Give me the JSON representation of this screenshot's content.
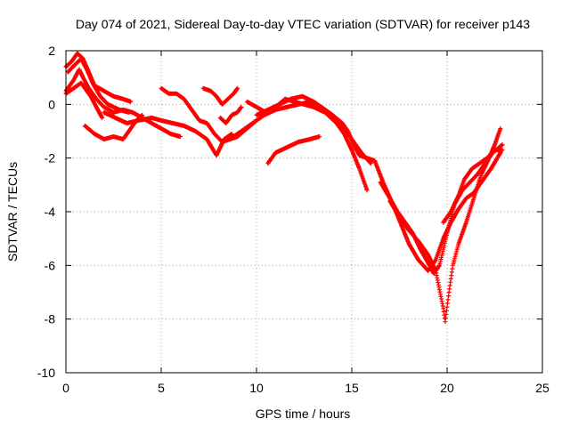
{
  "chart_data": {
    "type": "scatter",
    "title": "Day 074 of 2021, Sidereal Day-to-day VTEC variation (SDTVAR) for receiver p143",
    "xlabel": "GPS time / hours",
    "ylabel": "SDTVAR / TECUs",
    "xlim": [
      0,
      25
    ],
    "ylim": [
      -10,
      2
    ],
    "xticks": [
      0,
      5,
      10,
      15,
      20,
      25
    ],
    "yticks": [
      -10,
      -8,
      -6,
      -4,
      -2,
      0,
      2
    ],
    "grid": true,
    "marker": "+",
    "series_color": "#ff0000",
    "tracks": [
      [
        [
          0.0,
          0.5
        ],
        [
          0.4,
          0.9
        ],
        [
          0.7,
          1.3
        ],
        [
          0.9,
          1.0
        ],
        [
          1.2,
          0.6
        ],
        [
          1.6,
          0.2
        ],
        [
          2.0,
          -0.1
        ],
        [
          2.5,
          -0.3
        ],
        [
          3.0,
          -0.2
        ],
        [
          3.5,
          -0.3
        ],
        [
          4.0,
          -0.5
        ],
        [
          4.5,
          -0.7
        ],
        [
          5.0,
          -0.9
        ],
        [
          5.5,
          -1.1
        ],
        [
          6.0,
          -1.2
        ]
      ],
      [
        [
          0.0,
          1.4
        ],
        [
          0.3,
          1.6
        ],
        [
          0.6,
          1.9
        ],
        [
          0.9,
          1.7
        ],
        [
          1.2,
          1.2
        ],
        [
          1.5,
          0.7
        ],
        [
          2.0,
          0.5
        ],
        [
          2.5,
          0.3
        ],
        [
          3.0,
          0.2
        ],
        [
          3.4,
          0.1
        ]
      ],
      [
        [
          0.1,
          1.2
        ],
        [
          0.5,
          1.5
        ],
        [
          0.8,
          1.7
        ],
        [
          1.1,
          1.3
        ],
        [
          1.4,
          0.8
        ],
        [
          1.8,
          0.3
        ],
        [
          2.2,
          0.0
        ],
        [
          2.8,
          -0.2
        ],
        [
          3.3,
          -0.3
        ]
      ],
      [
        [
          0.0,
          0.4
        ],
        [
          0.4,
          0.6
        ],
        [
          0.8,
          0.8
        ],
        [
          1.0,
          0.6
        ],
        [
          1.3,
          0.3
        ],
        [
          1.6,
          -0.1
        ],
        [
          1.9,
          -0.5
        ]
      ],
      [
        [
          1.0,
          -0.8
        ],
        [
          1.5,
          -1.1
        ],
        [
          2.0,
          -1.3
        ],
        [
          2.5,
          -1.2
        ],
        [
          3.0,
          -1.3
        ],
        [
          3.4,
          -0.9
        ],
        [
          3.7,
          -0.6
        ],
        [
          4.0,
          -0.4
        ]
      ],
      [
        [
          2.0,
          -0.3
        ],
        [
          2.6,
          -0.5
        ],
        [
          3.2,
          -0.7
        ],
        [
          3.8,
          -0.6
        ],
        [
          4.5,
          -0.5
        ],
        [
          5.0,
          -0.6
        ],
        [
          5.6,
          -0.7
        ],
        [
          6.2,
          -0.8
        ],
        [
          6.8,
          -1.0
        ],
        [
          7.4,
          -1.3
        ],
        [
          7.9,
          -1.9
        ],
        [
          8.3,
          -1.3
        ],
        [
          8.7,
          -1.1
        ]
      ],
      [
        [
          5.0,
          0.6
        ],
        [
          5.4,
          0.4
        ],
        [
          5.8,
          0.4
        ],
        [
          6.2,
          0.2
        ],
        [
          6.6,
          -0.2
        ],
        [
          7.0,
          -0.6
        ],
        [
          7.4,
          -0.7
        ],
        [
          7.8,
          -1.1
        ],
        [
          8.2,
          -1.4
        ],
        [
          8.6,
          -1.3
        ],
        [
          9.0,
          -1.2
        ],
        [
          9.5,
          -0.9
        ],
        [
          10.0,
          -0.6
        ]
      ],
      [
        [
          7.2,
          0.6
        ],
        [
          7.6,
          0.5
        ],
        [
          7.9,
          0.3
        ],
        [
          8.2,
          0.0
        ],
        [
          8.5,
          0.2
        ],
        [
          8.8,
          0.4
        ],
        [
          9.0,
          0.6
        ]
      ],
      [
        [
          8.1,
          -0.5
        ],
        [
          8.4,
          -0.7
        ],
        [
          8.7,
          -0.4
        ],
        [
          9.0,
          -0.3
        ],
        [
          9.2,
          -0.1
        ]
      ],
      [
        [
          8.6,
          -1.3
        ],
        [
          9.2,
          -1.0
        ],
        [
          9.8,
          -0.7
        ],
        [
          10.4,
          -0.4
        ],
        [
          11.0,
          -0.2
        ],
        [
          11.6,
          -0.1
        ],
        [
          12.2,
          0.0
        ],
        [
          12.8,
          0.1
        ],
        [
          13.4,
          -0.1
        ],
        [
          14.0,
          -0.4
        ],
        [
          14.5,
          -0.7
        ],
        [
          14.8,
          -1.0
        ],
        [
          15.1,
          -1.5
        ],
        [
          15.4,
          -1.9
        ],
        [
          15.8,
          -2.0
        ],
        [
          16.2,
          -2.1
        ]
      ],
      [
        [
          9.5,
          0.1
        ],
        [
          10.0,
          -0.1
        ],
        [
          10.5,
          -0.3
        ],
        [
          11.0,
          -0.1
        ],
        [
          11.5,
          0.2
        ],
        [
          12.0,
          0.1
        ],
        [
          12.5,
          0.0
        ],
        [
          13.0,
          -0.1
        ],
        [
          13.6,
          -0.3
        ],
        [
          14.2,
          -0.7
        ],
        [
          14.6,
          -1.1
        ],
        [
          15.0,
          -1.7
        ],
        [
          15.4,
          -2.4
        ],
        [
          15.8,
          -3.2
        ]
      ],
      [
        [
          10.0,
          -0.4
        ],
        [
          10.6,
          -0.2
        ],
        [
          11.2,
          0.0
        ],
        [
          11.8,
          0.2
        ],
        [
          12.4,
          0.3
        ],
        [
          13.0,
          0.1
        ],
        [
          13.6,
          -0.2
        ],
        [
          14.3,
          -0.6
        ],
        [
          14.9,
          -1.2
        ],
        [
          15.5,
          -1.8
        ],
        [
          16.0,
          -2.2
        ]
      ],
      [
        [
          10.6,
          -2.2
        ],
        [
          11.0,
          -1.8
        ],
        [
          11.6,
          -1.6
        ],
        [
          12.2,
          -1.4
        ],
        [
          12.8,
          -1.3
        ],
        [
          13.3,
          -1.2
        ]
      ],
      [
        [
          16.2,
          -2.1
        ],
        [
          16.7,
          -3.0
        ],
        [
          17.2,
          -3.8
        ],
        [
          17.6,
          -4.5
        ],
        [
          18.0,
          -5.2
        ],
        [
          18.5,
          -5.8
        ],
        [
          19.0,
          -6.2
        ],
        [
          19.4,
          -5.8
        ],
        [
          19.8,
          -5.0
        ],
        [
          20.2,
          -4.4
        ],
        [
          20.6,
          -3.9
        ],
        [
          21.0,
          -3.5
        ],
        [
          21.4,
          -3.3
        ],
        [
          21.8,
          -2.9
        ],
        [
          22.3,
          -2.4
        ],
        [
          22.8,
          -1.8
        ]
      ],
      [
        [
          16.5,
          -2.9
        ],
        [
          17.0,
          -3.5
        ],
        [
          17.4,
          -4.0
        ],
        [
          17.8,
          -4.4
        ],
        [
          18.2,
          -4.8
        ],
        [
          18.6,
          -5.4
        ],
        [
          19.0,
          -5.9
        ],
        [
          19.3,
          -6.3
        ],
        [
          19.6,
          -6.0
        ],
        [
          20.0,
          -4.8
        ],
        [
          20.4,
          -3.7
        ],
        [
          20.8,
          -3.2
        ],
        [
          21.2,
          -2.9
        ],
        [
          21.6,
          -2.6
        ],
        [
          22.0,
          -2.2
        ],
        [
          22.4,
          -1.8
        ],
        [
          22.9,
          -1.5
        ]
      ],
      [
        [
          17.0,
          -3.6
        ],
        [
          17.5,
          -4.2
        ],
        [
          18.0,
          -4.7
        ],
        [
          18.5,
          -5.1
        ],
        [
          19.0,
          -5.6
        ],
        [
          19.4,
          -6.2
        ],
        [
          19.6,
          -6.9
        ],
        [
          19.8,
          -7.6
        ],
        [
          19.9,
          -8.1
        ],
        [
          20.1,
          -7.0
        ],
        [
          20.3,
          -6.0
        ],
        [
          20.6,
          -5.2
        ],
        [
          21.0,
          -4.4
        ],
        [
          21.4,
          -3.5
        ],
        [
          21.8,
          -2.6
        ],
        [
          22.2,
          -2.0
        ],
        [
          22.5,
          -1.5
        ],
        [
          22.8,
          -0.9
        ]
      ],
      [
        [
          19.8,
          -4.4
        ],
        [
          20.2,
          -4.0
        ],
        [
          20.6,
          -3.4
        ],
        [
          20.9,
          -2.8
        ],
        [
          21.3,
          -2.4
        ],
        [
          21.7,
          -2.2
        ],
        [
          22.1,
          -2.0
        ],
        [
          22.5,
          -1.7
        ],
        [
          22.9,
          -1.7
        ]
      ]
    ]
  }
}
